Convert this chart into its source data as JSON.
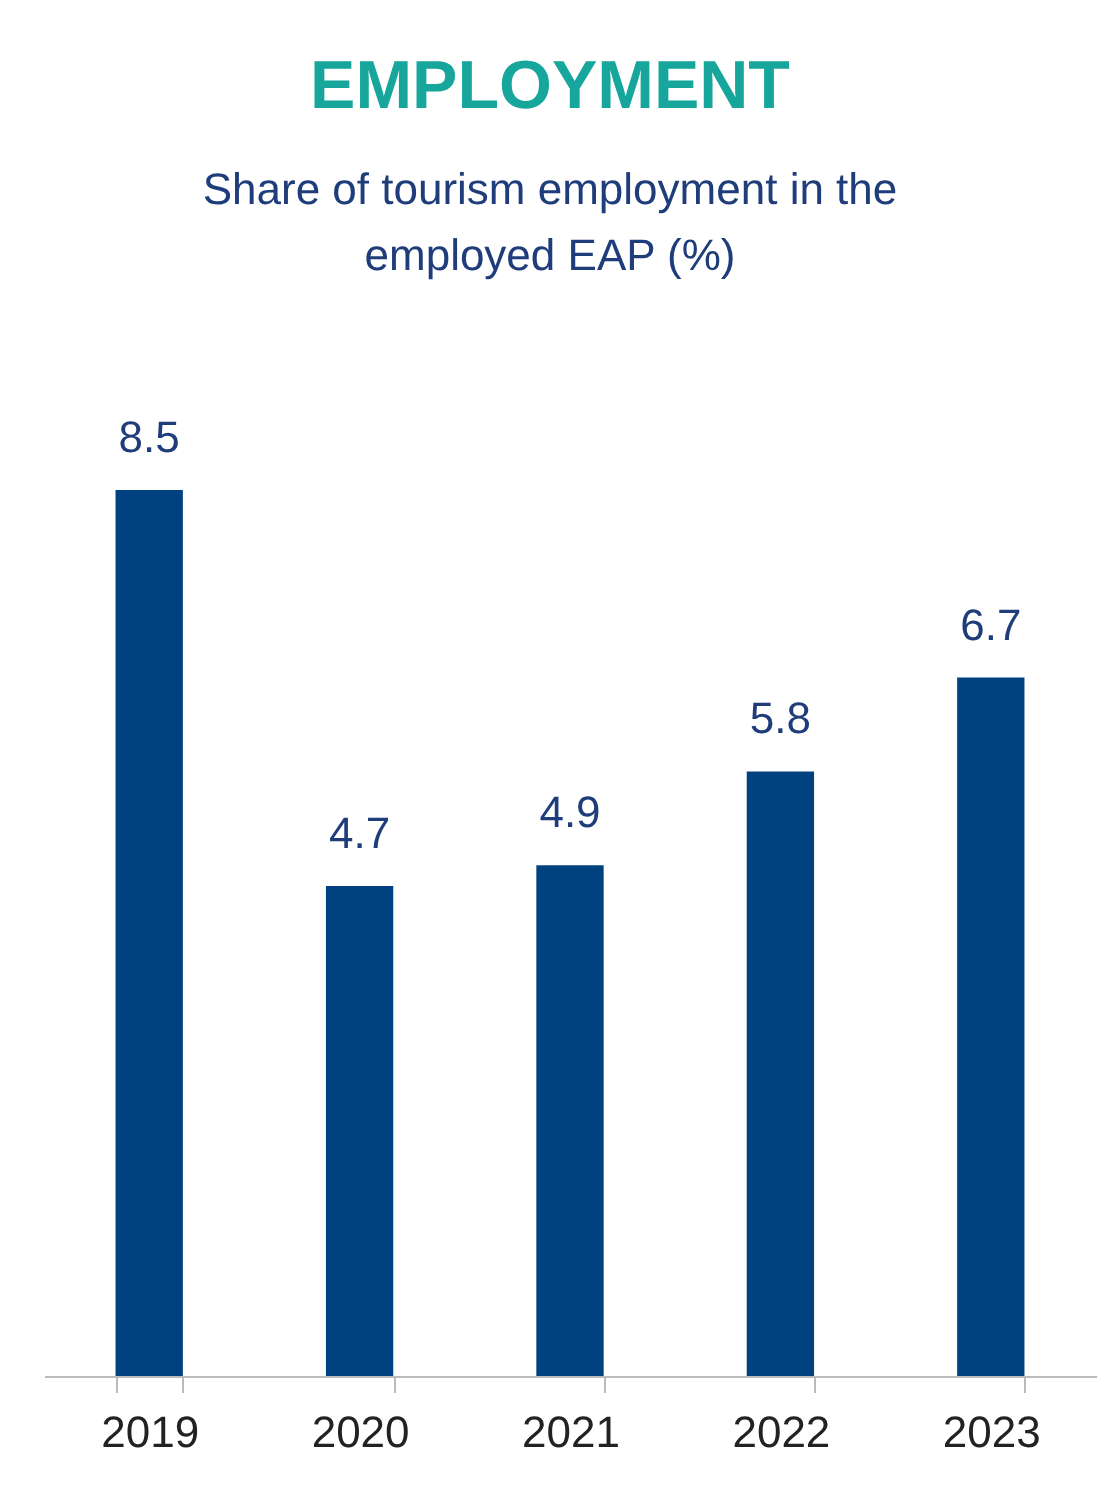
{
  "chart_data": {
    "type": "bar",
    "title": "EMPLOYMENT",
    "subtitle": "Share of tourism employment in the employed EAP (%)",
    "categories": [
      "2019",
      "2020",
      "2021",
      "2022",
      "2023"
    ],
    "values": [
      8.5,
      4.7,
      4.9,
      5.8,
      6.7
    ],
    "color": "#00427f",
    "data_labels": true
  }
}
